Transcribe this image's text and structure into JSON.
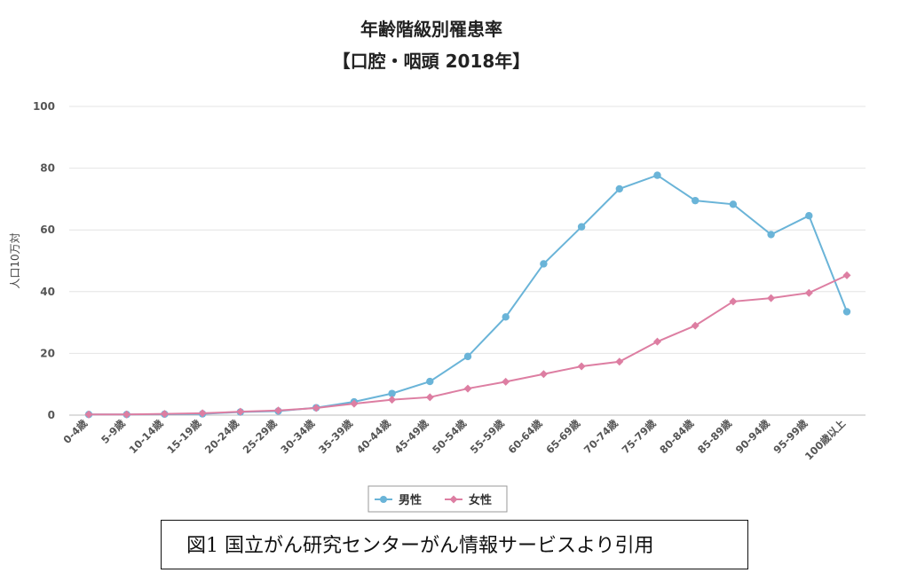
{
  "chart_data": {
    "type": "line",
    "title_line1": "年齢階級別罹患率",
    "title_line2": "【口腔・咽頭 2018年】",
    "ylabel": "人口10万対",
    "ylim": [
      0,
      100
    ],
    "yticks": [
      0,
      20,
      40,
      60,
      80,
      100
    ],
    "grid": true,
    "categories": [
      "0-4歳",
      "5-9歳",
      "10-14歳",
      "15-19歳",
      "20-24歳",
      "25-29歳",
      "30-34歳",
      "35-39歳",
      "40-44歳",
      "45-49歳",
      "50-54歳",
      "55-59歳",
      "60-64歳",
      "65-69歳",
      "70-74歳",
      "75-79歳",
      "80-84歳",
      "85-89歳",
      "90-94歳",
      "95-99歳",
      "100歳以上"
    ],
    "series": [
      {
        "name": "男性",
        "color": "#6ab4d8",
        "marker": "circle",
        "values": [
          0.2,
          0.2,
          0.3,
          0.4,
          1.0,
          1.3,
          2.4,
          4.3,
          7.0,
          10.9,
          19.0,
          31.8,
          49.0,
          61.0,
          73.3,
          77.7,
          69.5,
          68.3,
          58.5,
          64.6,
          33.5
        ]
      },
      {
        "name": "女性",
        "color": "#dd7ea2",
        "marker": "diamond",
        "values": [
          0.2,
          0.2,
          0.4,
          0.6,
          1.1,
          1.5,
          2.3,
          3.7,
          5.0,
          5.8,
          8.6,
          10.8,
          13.3,
          15.8,
          17.3,
          23.8,
          29.0,
          36.8,
          37.9,
          39.6,
          45.3
        ]
      }
    ],
    "legend_position": "bottom"
  },
  "caption": {
    "text": "図1 国立がん研究センターがん情報サービスより引用"
  }
}
